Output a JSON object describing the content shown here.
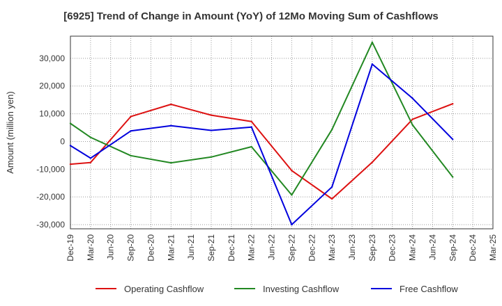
{
  "chart_data": {
    "type": "line",
    "title": "[6925]  Trend of Change in Amount (YoY) of 12Mo Moving Sum of Cashflows",
    "xlabel": "",
    "ylabel": "Amount (million yen)",
    "categories": [
      "Dec-19",
      "Mar-20",
      "Jun-20",
      "Sep-20",
      "Dec-20",
      "Mar-21",
      "Jun-21",
      "Sep-21",
      "Dec-21",
      "Mar-22",
      "Jun-22",
      "Sep-22",
      "Dec-22",
      "Mar-23",
      "Jun-23",
      "Sep-23",
      "Dec-23",
      "Mar-24",
      "Jun-24",
      "Sep-24",
      "Dec-24",
      "Mar-25"
    ],
    "ylim": [
      -31500,
      38000
    ],
    "yticks": [
      -30000,
      -20000,
      -10000,
      0,
      10000,
      20000,
      30000
    ],
    "ytick_labels": [
      "-30,000",
      "-20,000",
      "-10,000",
      "0",
      "10,000",
      "20,000",
      "30,000"
    ],
    "grid": true,
    "legend_position": "bottom",
    "series": [
      {
        "name": "Operating Cashflow",
        "color": "#dd1111",
        "values": [
          -8200,
          -7600,
          null,
          9000,
          null,
          13400,
          null,
          9500,
          null,
          7200,
          null,
          -10500,
          null,
          -20700,
          null,
          -7500,
          null,
          8000,
          null,
          13600,
          null,
          null
        ]
      },
      {
        "name": "Investing Cashflow",
        "color": "#228822",
        "values": [
          6500,
          1500,
          null,
          -5100,
          null,
          -7700,
          null,
          -5600,
          null,
          -1900,
          null,
          -19300,
          null,
          4300,
          null,
          35800,
          null,
          6000,
          null,
          -12800,
          null,
          null
        ]
      },
      {
        "name": "Free Cashflow",
        "color": "#0000dd",
        "values": [
          -1500,
          -6000,
          null,
          3800,
          null,
          5700,
          null,
          4000,
          null,
          5200,
          null,
          -30000,
          null,
          -16400,
          null,
          27900,
          null,
          15600,
          null,
          800,
          null,
          null
        ]
      }
    ]
  }
}
